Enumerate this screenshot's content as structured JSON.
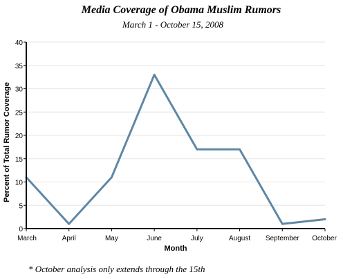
{
  "chart_data": {
    "type": "line",
    "title": "Media Coverage of Obama Muslim Rumors",
    "subtitle": "March 1 - October 15, 2008",
    "xlabel": "Month",
    "ylabel": "Percent of Total Rumor Coverage",
    "categories": [
      "March",
      "April",
      "May",
      "June",
      "July",
      "August",
      "September",
      "October"
    ],
    "series": [
      {
        "values": [
          11,
          1,
          11,
          33,
          17,
          17,
          1,
          2
        ]
      }
    ],
    "ylim": [
      0,
      40
    ],
    "yticks": [
      0,
      5,
      10,
      15,
      20,
      25,
      30,
      35,
      40
    ],
    "grid": true,
    "footnote": "* October analysis only extends through the 15th",
    "colors": {
      "line": "#5f87a5",
      "grid": "#e6e6e6"
    }
  }
}
